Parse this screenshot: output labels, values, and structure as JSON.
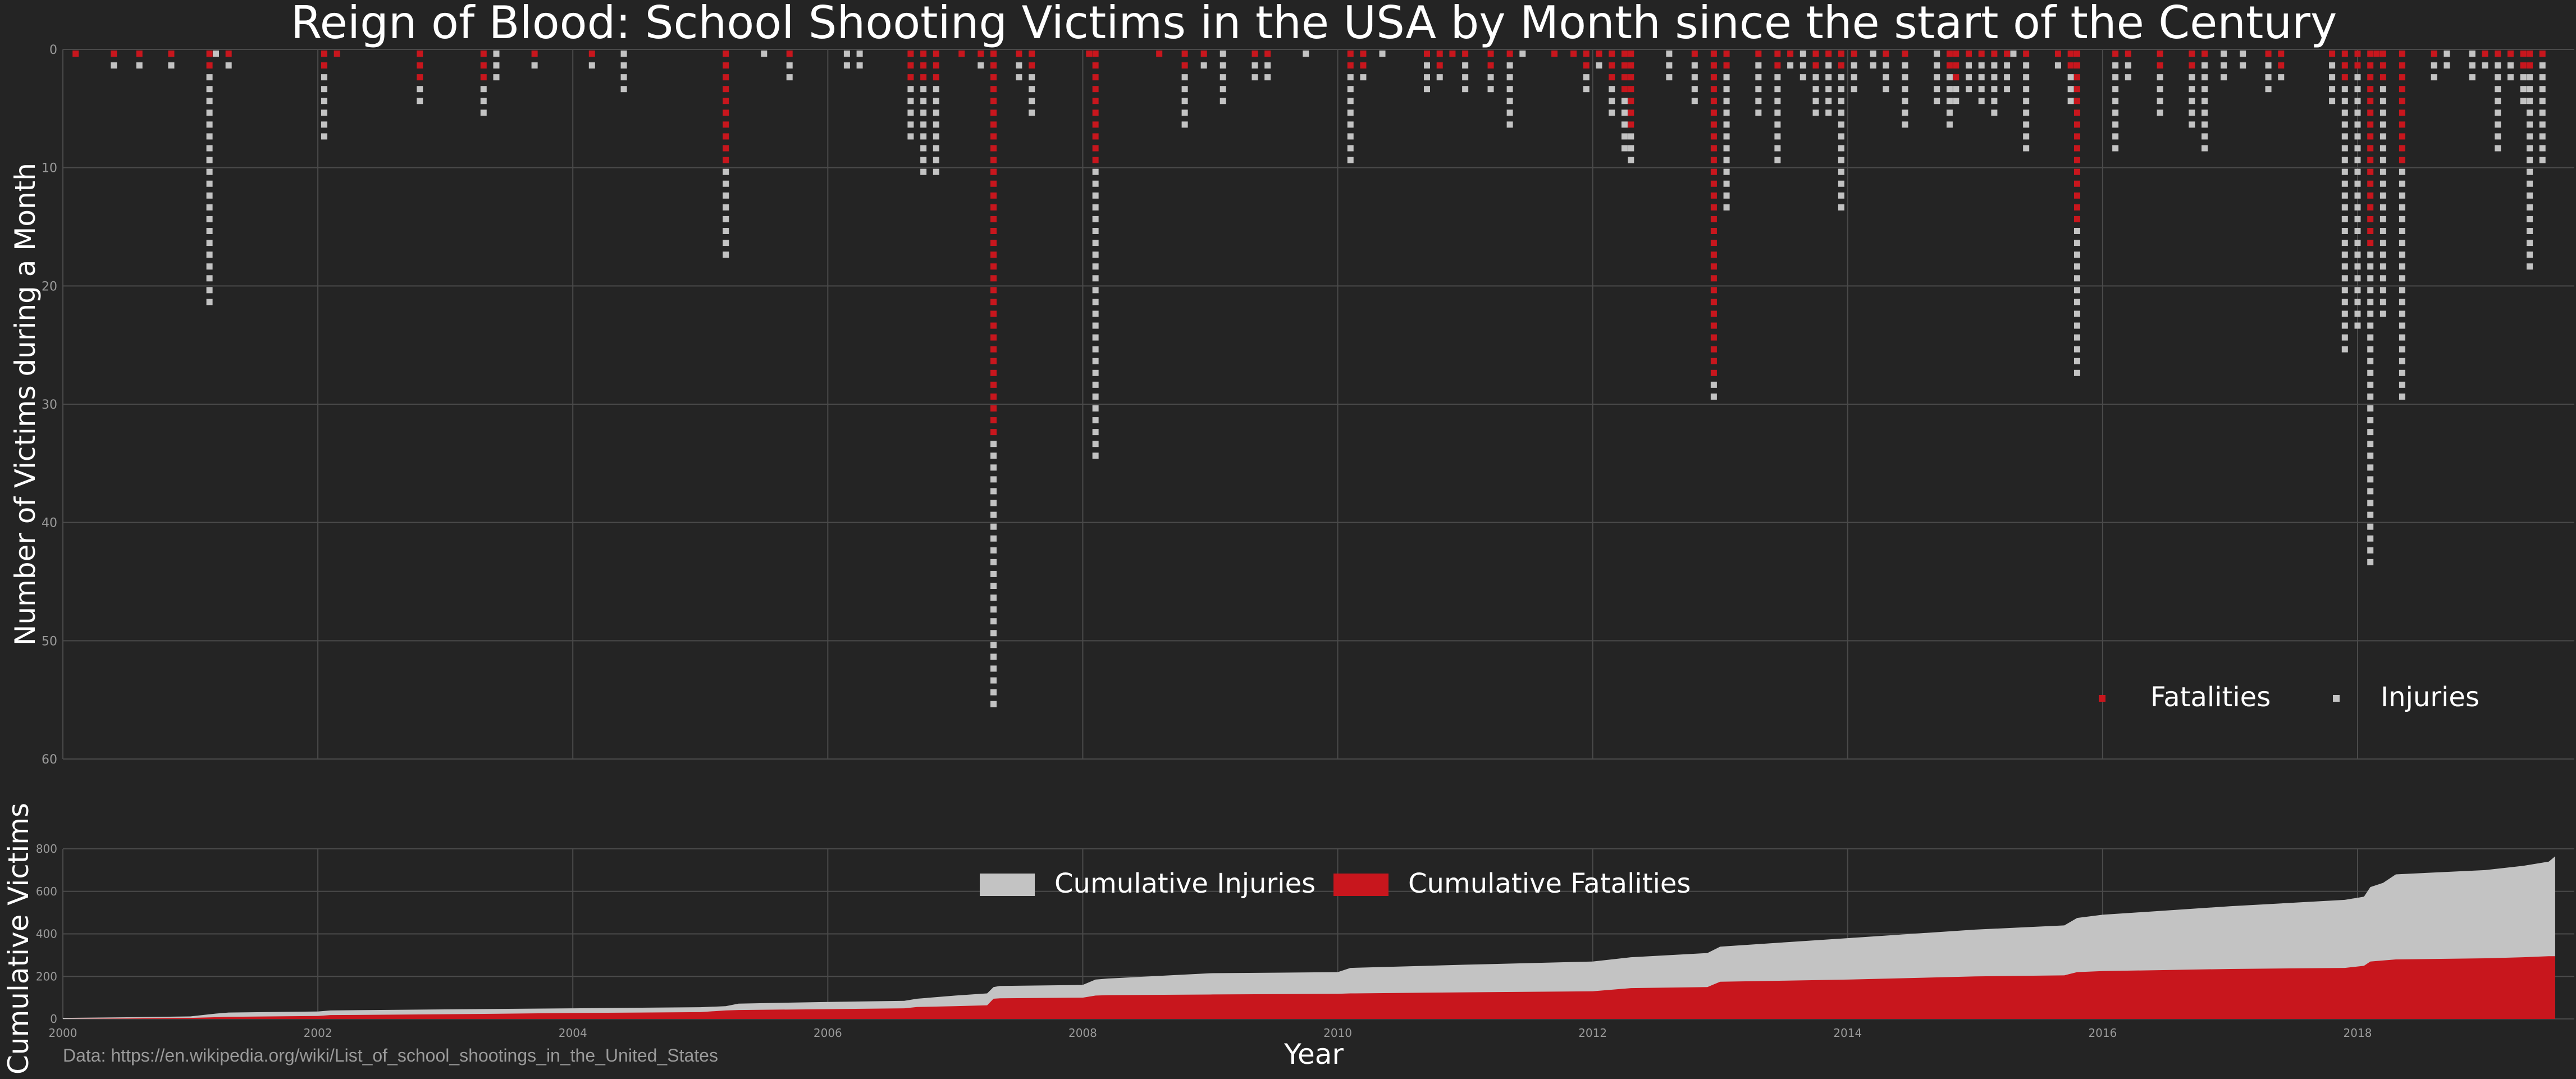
{
  "colors": {
    "background": "#242424",
    "grid": "#4a4a4a",
    "fatal": "#c8161d",
    "injury": "#c3c3c3",
    "text": "#ffffff",
    "tick": "#9a9a9a"
  },
  "source": "Data: https://en.wikipedia.org/wiki/List_of_school_shootings_in_the_United_States",
  "chart_data": [
    {
      "type": "scatter",
      "title": "Reign of Blood: School Shooting Victims in the USA by Month since the start of the Century",
      "xlabel": "",
      "ylabel": "Number of Victims during a Month",
      "xlim": [
        2000,
        2019.7
      ],
      "ylim": [
        0,
        60
      ],
      "y_inverted": true,
      "yticks": [
        "0",
        "10",
        "20",
        "30",
        "40",
        "50",
        "60"
      ],
      "xgrid": [
        2000,
        2002,
        2004,
        2006,
        2008,
        2010,
        2012,
        2014,
        2016,
        2018
      ],
      "legend": {
        "position": "lower-right",
        "entries": [
          "Fatalities",
          "Injuries"
        ]
      },
      "series_names": {
        "fatal": "Fatalities",
        "injury": "Injuries"
      },
      "months": [
        {
          "t": 2000.1,
          "f": 1,
          "i": 0
        },
        {
          "t": 2000.4,
          "f": 1,
          "i": 1
        },
        {
          "t": 2000.6,
          "f": 1,
          "i": 1
        },
        {
          "t": 2000.85,
          "f": 1,
          "i": 1
        },
        {
          "t": 2001.2,
          "f": 0,
          "i": 1
        },
        {
          "t": 2001.15,
          "f": 2,
          "i": 20
        },
        {
          "t": 2001.3,
          "f": 1,
          "i": 1
        },
        {
          "t": 2002.05,
          "f": 2,
          "i": 6
        },
        {
          "t": 2002.15,
          "f": 1,
          "i": 0
        },
        {
          "t": 2002.8,
          "f": 3,
          "i": 2
        },
        {
          "t": 2003.3,
          "f": 3,
          "i": 3
        },
        {
          "t": 2003.4,
          "f": 0,
          "i": 3
        },
        {
          "t": 2003.7,
          "f": 1,
          "i": 1
        },
        {
          "t": 2004.15,
          "f": 1,
          "i": 1
        },
        {
          "t": 2004.4,
          "f": 0,
          "i": 4
        },
        {
          "t": 2005.2,
          "f": 10,
          "i": 8
        },
        {
          "t": 2005.5,
          "f": 0,
          "i": 1
        },
        {
          "t": 2005.7,
          "f": 1,
          "i": 2
        },
        {
          "t": 2006.15,
          "f": 0,
          "i": 2
        },
        {
          "t": 2006.25,
          "f": 0,
          "i": 2
        },
        {
          "t": 2006.65,
          "f": 3,
          "i": 5
        },
        {
          "t": 2006.75,
          "f": 3,
          "i": 8
        },
        {
          "t": 2006.85,
          "f": 3,
          "i": 8
        },
        {
          "t": 2007.05,
          "f": 1,
          "i": 0
        },
        {
          "t": 2007.2,
          "f": 1,
          "i": 1
        },
        {
          "t": 2007.3,
          "f": 33,
          "i": 23
        },
        {
          "t": 2007.5,
          "f": 1,
          "i": 2
        },
        {
          "t": 2007.6,
          "f": 2,
          "i": 4
        },
        {
          "t": 2008.1,
          "f": 10,
          "i": 25
        },
        {
          "t": 2008.05,
          "f": 1,
          "i": 0
        },
        {
          "t": 2008.6,
          "f": 1,
          "i": 0
        },
        {
          "t": 2008.8,
          "f": 2,
          "i": 5
        },
        {
          "t": 2008.95,
          "f": 1,
          "i": 1
        },
        {
          "t": 2009.1,
          "f": 0,
          "i": 5
        },
        {
          "t": 2009.35,
          "f": 1,
          "i": 2
        },
        {
          "t": 2009.45,
          "f": 1,
          "i": 2
        },
        {
          "t": 2009.75,
          "f": 0,
          "i": 1
        },
        {
          "t": 2010.1,
          "f": 2,
          "i": 8
        },
        {
          "t": 2010.2,
          "f": 2,
          "i": 1
        },
        {
          "t": 2010.35,
          "f": 0,
          "i": 1
        },
        {
          "t": 2010.7,
          "f": 1,
          "i": 3
        },
        {
          "t": 2010.8,
          "f": 2,
          "i": 1
        },
        {
          "t": 2010.9,
          "f": 1,
          "i": 0
        },
        {
          "t": 2011.0,
          "f": 1,
          "i": 3
        },
        {
          "t": 2011.2,
          "f": 2,
          "i": 2
        },
        {
          "t": 2011.35,
          "f": 1,
          "i": 6
        },
        {
          "t": 2011.45,
          "f": 0,
          "i": 1
        },
        {
          "t": 2011.7,
          "f": 1,
          "i": 0
        },
        {
          "t": 2011.85,
          "f": 1,
          "i": 0
        },
        {
          "t": 2011.95,
          "f": 2,
          "i": 2
        },
        {
          "t": 2012.05,
          "f": 1,
          "i": 1
        },
        {
          "t": 2012.15,
          "f": 3,
          "i": 3
        },
        {
          "t": 2012.25,
          "f": 4,
          "i": 5
        },
        {
          "t": 2012.3,
          "f": 7,
          "i": 3
        },
        {
          "t": 2012.6,
          "f": 0,
          "i": 3
        },
        {
          "t": 2012.8,
          "f": 1,
          "i": 4
        },
        {
          "t": 2012.95,
          "f": 28,
          "i": 2
        },
        {
          "t": 2013.05,
          "f": 2,
          "i": 12
        },
        {
          "t": 2013.3,
          "f": 1,
          "i": 5
        },
        {
          "t": 2013.45,
          "f": 2,
          "i": 8
        },
        {
          "t": 2013.55,
          "f": 1,
          "i": 1
        },
        {
          "t": 2013.65,
          "f": 0,
          "i": 3
        },
        {
          "t": 2013.75,
          "f": 2,
          "i": 4
        },
        {
          "t": 2013.85,
          "f": 1,
          "i": 5
        },
        {
          "t": 2013.95,
          "f": 2,
          "i": 12
        },
        {
          "t": 2014.05,
          "f": 1,
          "i": 3
        },
        {
          "t": 2014.2,
          "f": 0,
          "i": 2
        },
        {
          "t": 2014.3,
          "f": 1,
          "i": 3
        },
        {
          "t": 2014.45,
          "f": 1,
          "i": 6
        },
        {
          "t": 2014.7,
          "f": 0,
          "i": 5
        },
        {
          "t": 2014.8,
          "f": 2,
          "i": 5
        },
        {
          "t": 2014.85,
          "f": 3,
          "i": 2
        },
        {
          "t": 2014.95,
          "f": 1,
          "i": 3
        },
        {
          "t": 2015.05,
          "f": 1,
          "i": 4
        },
        {
          "t": 2015.15,
          "f": 1,
          "i": 5
        },
        {
          "t": 2015.25,
          "f": 1,
          "i": 3
        },
        {
          "t": 2015.3,
          "f": 0,
          "i": 1
        },
        {
          "t": 2015.4,
          "f": 1,
          "i": 8
        },
        {
          "t": 2015.65,
          "f": 1,
          "i": 1
        },
        {
          "t": 2015.75,
          "f": 2,
          "i": 3
        },
        {
          "t": 2015.8,
          "f": 15,
          "i": 13
        },
        {
          "t": 2016.1,
          "f": 1,
          "i": 8
        },
        {
          "t": 2016.2,
          "f": 1,
          "i": 2
        },
        {
          "t": 2016.45,
          "f": 2,
          "i": 4
        },
        {
          "t": 2016.7,
          "f": 2,
          "i": 5
        },
        {
          "t": 2016.8,
          "f": 1,
          "i": 8
        },
        {
          "t": 2016.95,
          "f": 0,
          "i": 3
        },
        {
          "t": 2017.1,
          "f": 0,
          "i": 2
        },
        {
          "t": 2017.3,
          "f": 1,
          "i": 3
        },
        {
          "t": 2017.4,
          "f": 2,
          "i": 1
        },
        {
          "t": 2017.8,
          "f": 1,
          "i": 4
        },
        {
          "t": 2017.9,
          "f": 3,
          "i": 23
        },
        {
          "t": 2018.0,
          "f": 2,
          "i": 22
        },
        {
          "t": 2018.1,
          "f": 17,
          "i": 27
        },
        {
          "t": 2018.15,
          "f": 1,
          "i": 0
        },
        {
          "t": 2018.2,
          "f": 3,
          "i": 20
        },
        {
          "t": 2018.35,
          "f": 10,
          "i": 20
        },
        {
          "t": 2018.6,
          "f": 1,
          "i": 2
        },
        {
          "t": 2018.7,
          "f": 0,
          "i": 2
        },
        {
          "t": 2018.9,
          "f": 0,
          "i": 3
        },
        {
          "t": 2019.0,
          "f": 1,
          "i": 1
        },
        {
          "t": 2019.1,
          "f": 1,
          "i": 8
        },
        {
          "t": 2019.2,
          "f": 1,
          "i": 2
        },
        {
          "t": 2019.3,
          "f": 2,
          "i": 3
        },
        {
          "t": 2019.35,
          "f": 2,
          "i": 17
        },
        {
          "t": 2019.45,
          "f": 1,
          "i": 9
        }
      ]
    },
    {
      "type": "area",
      "title": "",
      "xlabel": "Year",
      "ylabel": "Cumulative Victims",
      "xlim": [
        2000,
        2019.7
      ],
      "ylim": [
        0,
        800
      ],
      "xticks": [
        "2000",
        "2002",
        "2004",
        "2006",
        "2008",
        "2010",
        "2012",
        "2014",
        "2016",
        "2018"
      ],
      "yticks": [
        "0",
        "200",
        "400",
        "600",
        "800"
      ],
      "legend": {
        "position": "top-center",
        "entries": [
          "Cumulative Injuries",
          "Cumulative Fatalities"
        ]
      },
      "x": [
        2000.0,
        2000.5,
        2001.0,
        2001.2,
        2001.3,
        2002.0,
        2002.1,
        2003.0,
        2004.0,
        2005.0,
        2005.2,
        2005.3,
        2006.0,
        2006.6,
        2006.7,
        2007.0,
        2007.25,
        2007.3,
        2007.35,
        2008.0,
        2008.1,
        2008.2,
        2009.0,
        2010.0,
        2010.1,
        2011.0,
        2012.0,
        2012.3,
        2012.9,
        2013.0,
        2013.5,
        2014.0,
        2015.0,
        2015.7,
        2015.8,
        2016.0,
        2017.0,
        2017.9,
        2018.05,
        2018.1,
        2018.2,
        2018.3,
        2019.0,
        2019.3,
        2019.5,
        2019.55
      ],
      "series": [
        {
          "name": "Cumulative Fatalities",
          "values": [
            0,
            2,
            5,
            8,
            10,
            14,
            18,
            22,
            28,
            32,
            40,
            42,
            46,
            50,
            56,
            60,
            64,
            95,
            97,
            100,
            110,
            112,
            115,
            118,
            120,
            125,
            130,
            145,
            150,
            175,
            180,
            185,
            200,
            205,
            220,
            225,
            235,
            240,
            250,
            270,
            275,
            280,
            285,
            290,
            295,
            295
          ]
        },
        {
          "name": "Cumulative Injuries",
          "values": [
            5,
            8,
            12,
            25,
            30,
            35,
            40,
            45,
            50,
            55,
            60,
            72,
            80,
            85,
            95,
            110,
            120,
            150,
            155,
            160,
            185,
            190,
            215,
            220,
            240,
            255,
            270,
            290,
            310,
            340,
            360,
            380,
            420,
            440,
            475,
            490,
            530,
            560,
            575,
            620,
            640,
            680,
            700,
            720,
            740,
            765
          ]
        }
      ]
    }
  ]
}
